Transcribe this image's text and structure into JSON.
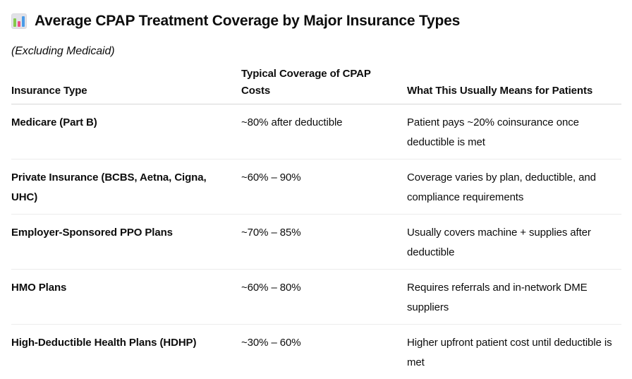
{
  "page": {
    "title": "Average CPAP Treatment Coverage by Major Insurance Types",
    "subtitle": "(Excluding Medicaid)",
    "title_icon": "bar-chart-emoji"
  },
  "colors": {
    "text": "#0d0d0d",
    "header_divider": "#d6d6d6",
    "row_divider": "#ececec",
    "icon_background": "#e2e2e8",
    "icon_bar_green": "#84c94b",
    "icon_bar_pink": "#ee4f84",
    "icon_bar_blue": "#4a9be8"
  },
  "table": {
    "columns": [
      "Insurance Type",
      "Typical Coverage of CPAP Costs",
      "What This Usually Means for Patients"
    ],
    "rows": [
      {
        "insurance_type": "Medicare (Part B)",
        "coverage": "~80% after deductible",
        "meaning": "Patient pays ~20% coinsurance once deductible is met"
      },
      {
        "insurance_type": "Private Insurance (BCBS, Aetna, Cigna, UHC)",
        "coverage": "~60% – 90%",
        "meaning": "Coverage varies by plan, deductible, and compliance requirements"
      },
      {
        "insurance_type": "Employer-Sponsored PPO Plans",
        "coverage": "~70% – 85%",
        "meaning": "Usually covers machine + supplies after deductible"
      },
      {
        "insurance_type": "HMO Plans",
        "coverage": "~60% – 80%",
        "meaning": "Requires referrals and in-network DME suppliers"
      },
      {
        "insurance_type": "High-Deductible Health Plans (HDHP)",
        "coverage": "~30% – 60%",
        "meaning": "Higher upfront patient cost until deductible is met"
      }
    ]
  }
}
